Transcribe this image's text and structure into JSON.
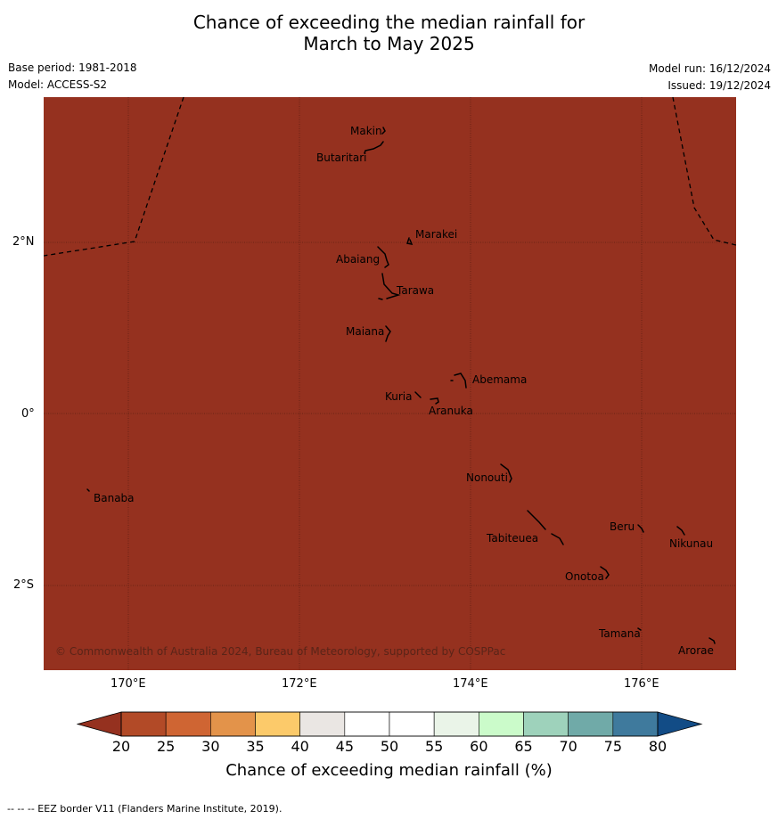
{
  "header": {
    "title_line1": "Chance of exceeding the median rainfall for",
    "title_line2": "March to May 2025",
    "base_period": "Base period: 1981-2018",
    "model": "Model: ACCESS-S2",
    "model_run": "Model run: 16/12/2024",
    "issued": "Issued: 19/12/2024"
  },
  "map": {
    "background_color": "#95311f",
    "lat_labels": [
      "2°N",
      "0°",
      "2°S"
    ],
    "lon_labels": [
      "170°E",
      "172°E",
      "174°E",
      "176°E"
    ],
    "places": [
      "Makin",
      "Butaritari",
      "Marakei",
      "Abaiang",
      "Tarawa",
      "Maiana",
      "Abemama",
      "Kuria",
      "Aranuka",
      "Nonouti",
      "Banaba",
      "Beru",
      "Nikunau",
      "Tabiteuea",
      "Onotoa",
      "Tamana",
      "Arorae"
    ],
    "copyright": "© Commonwealth of Australia 2024, Bureau of Meteorology, supported by COSPPac"
  },
  "colorbar": {
    "labels": [
      "20",
      "25",
      "30",
      "35",
      "40",
      "45",
      "50",
      "55",
      "60",
      "65",
      "70",
      "75",
      "80"
    ],
    "colors": [
      "#b24a27",
      "#cf6533",
      "#e3934a",
      "#fcca6a",
      "#eae6e3",
      "#ffffff",
      "#ffffff",
      "#eaf4e8",
      "#cbfbca",
      "#9ed2bb",
      "#70aaa8",
      "#3f7a9d"
    ],
    "under_color": "#95311f",
    "over_color": "#124c86",
    "title": "Chance of exceeding median rainfall (%)"
  },
  "footnote": "--  --  -- EEZ border V11 (Flanders Marine Institute, 2019)."
}
